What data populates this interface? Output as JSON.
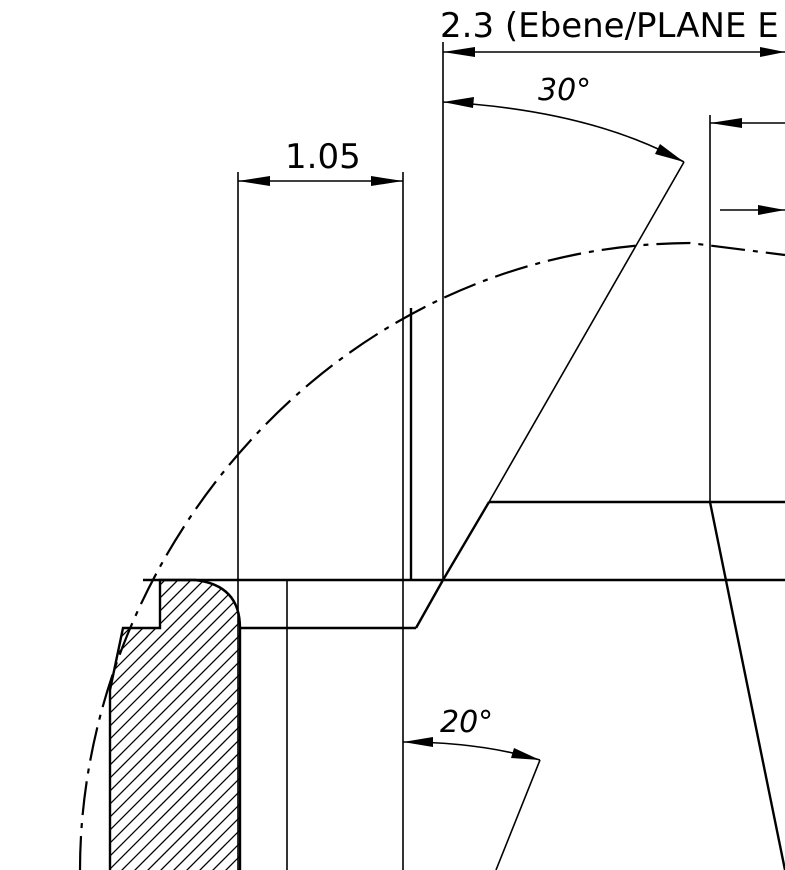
{
  "dimensions": {
    "top_width": "2.3 (Ebene/PLANE E",
    "angle_top": "30°",
    "gap_width": "1.05",
    "angle_bottom": "20°"
  }
}
